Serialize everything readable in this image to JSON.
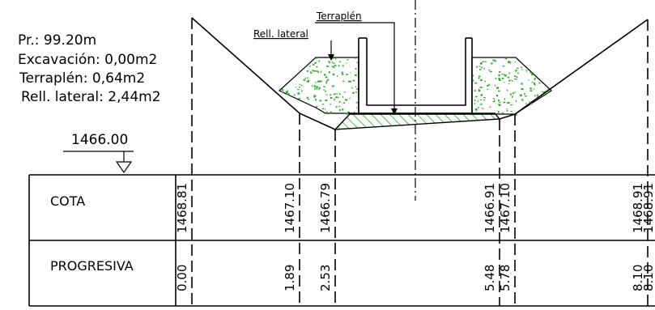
{
  "info": {
    "pr": "Pr.: 99.20m",
    "excavacion": "Excavación: 0,00m2",
    "terraplen": "Terraplén: 0,64m2",
    "rell_lateral": "Rell.  lateral: 2,44m2"
  },
  "datum": "1466.00",
  "labels": {
    "terraplen": "Terraplén",
    "rell_lateral": "Rell.  lateral"
  },
  "table": {
    "row_cota": "COTA",
    "row_progresiva": "PROGRESIVA"
  },
  "stations": [
    {
      "cota": "1468.81",
      "progresiva": "0.00"
    },
    {
      "cota": "1467.10",
      "progresiva": "1.89"
    },
    {
      "cota": "1466.79",
      "progresiva": "2.53"
    },
    {
      "cota": "1466.91",
      "progresiva": "5.48"
    },
    {
      "cota": "1467.10",
      "progresiva": "5.78"
    },
    {
      "cota": "1468.91",
      "progresiva": "8.10"
    },
    {
      "cota": "1468.91",
      "progresiva": "8.10"
    }
  ],
  "colors": {
    "line": "#000000",
    "fill_dots": "#33aa33",
    "hatch": "#22aa22"
  }
}
